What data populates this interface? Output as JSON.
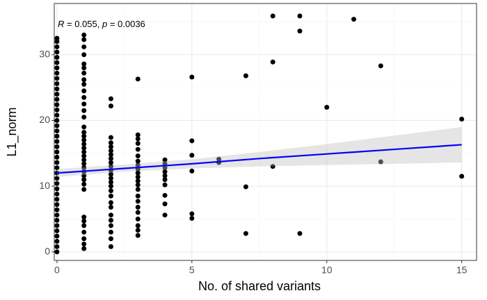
{
  "chart_data": {
    "type": "scatter",
    "x_label": "No. of shared variants",
    "y_label": "L1_norm",
    "annotation": [
      "R",
      " = 0.055, ",
      "p",
      " = 0.0036"
    ],
    "point_color": "#000000",
    "fit_color": "#0000ff",
    "ribbon_color": "#bebebe",
    "grid": true,
    "xlim": [
      -0.1,
      15.55
    ],
    "ylim": [
      -1.3,
      37.8
    ],
    "xticks": [
      0,
      5,
      10,
      15
    ],
    "yticks": [
      0,
      10,
      20,
      30
    ],
    "xminor": [
      2.5,
      7.5,
      12.5
    ],
    "yminor": [
      5,
      15,
      25,
      35
    ],
    "x": [
      0,
      0,
      0,
      0,
      0,
      0,
      0,
      0,
      0,
      0,
      0,
      0,
      0,
      0,
      0,
      0,
      0,
      0,
      0,
      0,
      0,
      0,
      0,
      0,
      0,
      0,
      0,
      0,
      0,
      0,
      0,
      0,
      0,
      0,
      0,
      0,
      0,
      0,
      0,
      0,
      0,
      0,
      1,
      1,
      1,
      1,
      1,
      1,
      1,
      1,
      1,
      1,
      1,
      1,
      1,
      1,
      1,
      1,
      1,
      1,
      1,
      1,
      1,
      1,
      1,
      1,
      1,
      1,
      1,
      1,
      1,
      1,
      1,
      1,
      1,
      1,
      1,
      1,
      1,
      2,
      2,
      2,
      2,
      2,
      2,
      2,
      2,
      2,
      2,
      2,
      2,
      2,
      2,
      2,
      2,
      2,
      2,
      2,
      2,
      2,
      2,
      2,
      2,
      2,
      3,
      3,
      3,
      3,
      3,
      3,
      3,
      3,
      3,
      3,
      3,
      3,
      3,
      3,
      3,
      3,
      3,
      3,
      3,
      3,
      3,
      3,
      4,
      4,
      4,
      4,
      4,
      4,
      4,
      4,
      4,
      4,
      5,
      5,
      5,
      5,
      5,
      5,
      6,
      6,
      7,
      7,
      7,
      8,
      8,
      8,
      9,
      9,
      9,
      10,
      11,
      12,
      12,
      15,
      15
    ],
    "values": [
      0,
      0.8,
      1.6,
      2.4,
      3.2,
      4,
      4.8,
      5.6,
      6.4,
      7.2,
      8,
      8.8,
      9.6,
      10.4,
      11.2,
      12,
      12.8,
      13.6,
      14.4,
      15.2,
      16,
      16.8,
      17.6,
      18.4,
      19.2,
      20,
      20.8,
      21.6,
      22.4,
      23.2,
      24,
      24.8,
      25.6,
      26.4,
      27.2,
      28,
      28.8,
      29.6,
      30.4,
      31.2,
      32,
      32.5,
      0.5,
      1.2,
      2,
      3,
      4,
      4.7,
      5.3,
      9.5,
      10.3,
      11,
      11.6,
      12.2,
      12.8,
      13.4,
      14,
      14.6,
      15.2,
      15.8,
      16.4,
      17,
      17.6,
      18.2,
      19,
      20.5,
      21.5,
      22.5,
      23.5,
      24.5,
      25.5,
      26.2,
      27.2,
      28,
      28.6,
      30,
      31.2,
      32.3,
      33,
      0.8,
      2,
      3,
      4,
      4.8,
      5.6,
      6.8,
      7.5,
      8.5,
      9.3,
      10,
      10.6,
      11.2,
      11.8,
      12.4,
      13,
      13.6,
      14.2,
      14.8,
      15.4,
      16,
      16.6,
      17.4,
      22.2,
      23.3,
      2.5,
      3.3,
      4,
      5,
      6,
      6.8,
      7.7,
      8.5,
      9.5,
      10.2,
      10.8,
      11.4,
      12,
      12.6,
      13.2,
      13.8,
      14.6,
      15.6,
      16.5,
      17.2,
      17.8,
      26.3,
      5.6,
      7.3,
      8.6,
      10.2,
      11,
      11.6,
      12.2,
      12.8,
      13.4,
      14,
      5.1,
      5.8,
      12.3,
      14.7,
      16.9,
      26.6,
      13.6,
      14.1,
      2.8,
      9.9,
      26.8,
      13,
      28.9,
      35.9,
      2.8,
      33.6,
      35.9,
      22,
      35.4,
      13.7,
      28.3,
      11.5,
      20.2
    ],
    "fit": {
      "x": [
        0,
        2.5,
        5,
        7.5,
        10,
        12.5,
        15
      ],
      "y": [
        12.0,
        12.7,
        13.4,
        14.2,
        14.9,
        15.6,
        16.3
      ],
      "lower": [
        11.4,
        12.2,
        12.7,
        13.0,
        13.2,
        13.4,
        13.6
      ],
      "upper": [
        12.6,
        13.3,
        14.1,
        15.2,
        16.4,
        17.7,
        19.0
      ]
    }
  }
}
